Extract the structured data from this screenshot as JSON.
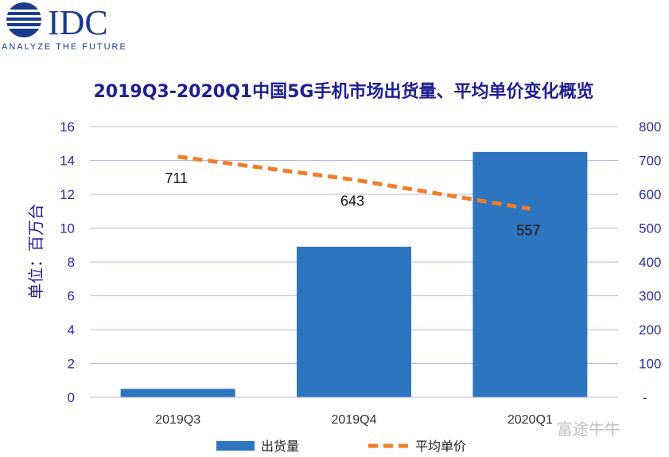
{
  "logo": {
    "name": "IDC",
    "tagline": "ANALYZE THE FUTURE"
  },
  "watermark": "富途牛牛",
  "chart_data": {
    "type": "bar",
    "title": "2019Q3-2020Q1中国5G手机市场出货量、平均单价变化概览",
    "ylabel": "单位：百万台",
    "categories": [
      "2019Q3",
      "2019Q4",
      "2020Q1"
    ],
    "ylim_left": [
      0,
      16
    ],
    "ylim_right": [
      0,
      800
    ],
    "left_ticks": [
      "0",
      "2",
      "4",
      "6",
      "8",
      "10",
      "12",
      "14",
      "16"
    ],
    "right_ticks": [
      "-",
      "100",
      "200",
      "300",
      "400",
      "500",
      "600",
      "700",
      "800"
    ],
    "grid": true,
    "legend_position": "bottom",
    "series": [
      {
        "name": "出货量",
        "type": "bar",
        "axis": "left",
        "color": "#2e75c0",
        "values": [
          0.5,
          8.9,
          14.5
        ]
      },
      {
        "name": "平均单价",
        "type": "line",
        "axis": "right",
        "style": "dashed",
        "color": "#f07d28",
        "values": [
          711,
          643,
          557
        ],
        "labels": [
          "711",
          "643",
          "557"
        ]
      }
    ]
  }
}
